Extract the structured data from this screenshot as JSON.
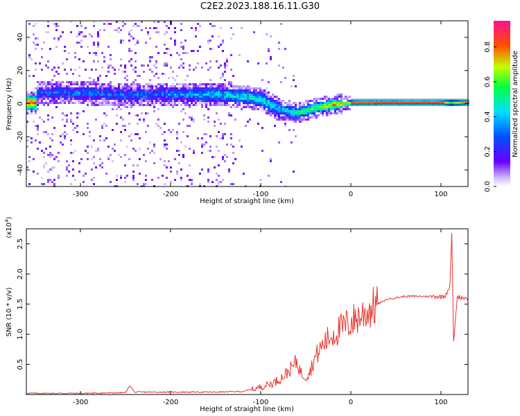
{
  "title": "C2E2.2023.188.16.11.G30",
  "colorbar": {
    "label": "Normalized spectral amplitude",
    "ticks": [
      "0.0",
      "0.2",
      "0.4",
      "0.6",
      "0.8"
    ]
  },
  "chart_data": [
    {
      "type": "heatmap",
      "xlabel": "Height of straight line (km)",
      "ylabel": "Frequency (Hz)",
      "xlim": [
        -360,
        130
      ],
      "ylim": [
        -50,
        50
      ],
      "xticks": [
        "-300",
        "-200",
        "-100",
        "0",
        "100"
      ],
      "yticks": [
        "-40",
        "-20",
        "0",
        "20",
        "40"
      ],
      "colorscale": [
        "#000000",
        "#4b00ff",
        "#0040ff",
        "#00d0ff",
        "#00ff60",
        "#b0ff00",
        "#ff4000",
        "#ff0080"
      ],
      "ridge": [
        {
          "x": -350,
          "f": 7,
          "a": 0.3
        },
        {
          "x": -300,
          "f": 7,
          "a": 0.32
        },
        {
          "x": -250,
          "f": 6,
          "a": 0.3
        },
        {
          "x": -200,
          "f": 6,
          "a": 0.34
        },
        {
          "x": -150,
          "f": 6,
          "a": 0.45
        },
        {
          "x": -120,
          "f": 5,
          "a": 0.5
        },
        {
          "x": -100,
          "f": 3,
          "a": 0.5
        },
        {
          "x": -80,
          "f": -3,
          "a": 0.45
        },
        {
          "x": -60,
          "f": -5,
          "a": 0.6
        },
        {
          "x": -40,
          "f": -2,
          "a": 0.7
        },
        {
          "x": -20,
          "f": 0,
          "a": 0.8
        },
        {
          "x": 0,
          "f": 1,
          "a": 0.85
        },
        {
          "x": 50,
          "f": 1,
          "a": 0.9
        },
        {
          "x": 100,
          "f": 1,
          "a": 0.9
        },
        {
          "x": 110,
          "f": 1,
          "a": 0.6
        },
        {
          "x": 130,
          "f": 1,
          "a": 0.9
        }
      ]
    },
    {
      "type": "line",
      "xlabel": "Height of straight line (km)",
      "ylabel": "SNR (10 * v/v)",
      "multiplier": "(x10",
      "multiplier_exp": "4",
      "multiplier_close": ")",
      "xlim": [
        -360,
        130
      ],
      "ylim": [
        0,
        2.75
      ],
      "xticks": [
        "-300",
        "-200",
        "-100",
        "0",
        "100"
      ],
      "yticks": [
        "0.5",
        "1.0",
        "1.5",
        "2.0",
        "2.5"
      ],
      "color": "#e8312a",
      "series": [
        {
          "x": [
            -360,
            -300,
            -250,
            -245,
            -240,
            -200,
            -150,
            -120,
            -105,
            -95,
            -85,
            -75,
            -65,
            -60,
            -55,
            -50,
            -45,
            -40,
            -30,
            -20,
            -10,
            0,
            10,
            20,
            30,
            40,
            60,
            80,
            95,
            100,
            105,
            110,
            112,
            114,
            118,
            130
          ],
          "y": [
            0.02,
            0.02,
            0.03,
            0.15,
            0.04,
            0.04,
            0.04,
            0.05,
            0.1,
            0.15,
            0.2,
            0.3,
            0.45,
            0.55,
            0.35,
            0.3,
            0.4,
            0.6,
            0.85,
            1.0,
            1.1,
            1.2,
            1.3,
            1.4,
            1.5,
            1.58,
            1.63,
            1.63,
            1.63,
            1.62,
            1.65,
            1.8,
            2.7,
            0.85,
            1.62,
            1.6
          ]
        }
      ]
    }
  ]
}
